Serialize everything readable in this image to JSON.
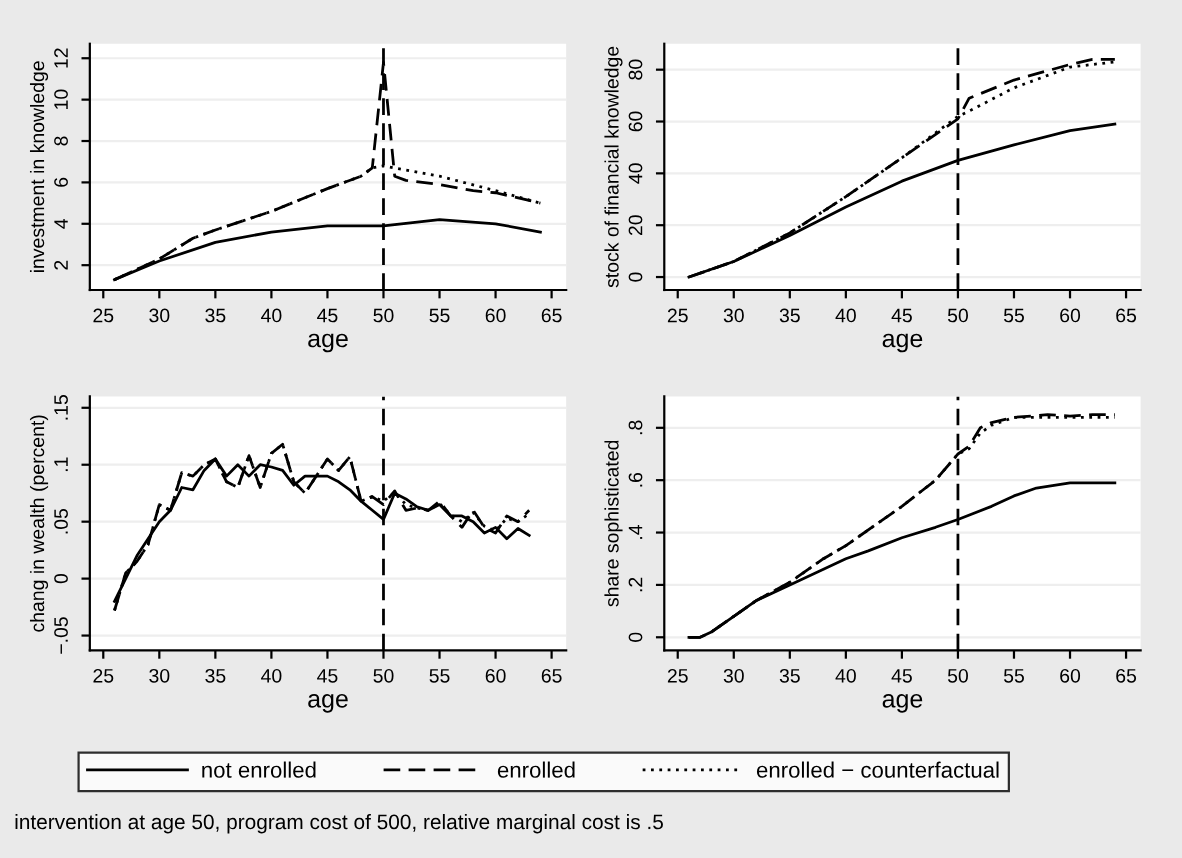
{
  "chart_data": [
    {
      "type": "line",
      "xlabel": "age",
      "ylabel": "investment in knowledge",
      "xlim": [
        23.8,
        66.3
      ],
      "xticks": [
        25,
        30,
        35,
        40,
        45,
        50,
        55,
        60,
        65
      ],
      "ylim": [
        0.8,
        12.7
      ],
      "yticks": [
        2,
        4,
        6,
        8,
        10,
        12
      ],
      "grid": "y",
      "legend": "bottom",
      "ref_lines": [
        {
          "axis": "x",
          "value": 50,
          "line_style": "dashed",
          "color": "#000000"
        }
      ],
      "series": [
        {
          "name": "not enrolled",
          "color": "#000000",
          "line_style": "solid",
          "x": [
            26,
            30,
            35,
            40,
            45,
            50,
            55,
            60,
            64
          ],
          "values": [
            1.3,
            2.2,
            3.1,
            3.6,
            3.9,
            3.9,
            4.2,
            4.0,
            3.6
          ]
        },
        {
          "name": "enrolled",
          "color": "#000000",
          "line_style": "dashed",
          "x": [
            26,
            30,
            33,
            35,
            40,
            45,
            48,
            49,
            50,
            51,
            52,
            55,
            58,
            60,
            64
          ],
          "values": [
            1.3,
            2.3,
            3.3,
            3.7,
            4.6,
            5.7,
            6.3,
            6.7,
            11.8,
            6.3,
            6.1,
            5.9,
            5.6,
            5.5,
            5.0
          ]
        },
        {
          "name": "enrolled − counterfactual",
          "color": "#000000",
          "line_style": "dotted",
          "x": [
            26,
            30,
            33,
            35,
            40,
            45,
            48,
            49,
            50,
            55,
            60,
            64
          ],
          "values": [
            1.3,
            2.3,
            3.3,
            3.7,
            4.6,
            5.7,
            6.3,
            6.7,
            6.8,
            6.3,
            5.6,
            5.0
          ]
        }
      ]
    },
    {
      "type": "line",
      "xlabel": "age",
      "ylabel": "stock of financial knowledge",
      "xlim": [
        23.8,
        66.3
      ],
      "xticks": [
        25,
        30,
        35,
        40,
        45,
        50,
        55,
        60,
        65
      ],
      "ylim": [
        -5,
        90
      ],
      "yticks": [
        0,
        20,
        40,
        60,
        80
      ],
      "grid": "y",
      "ref_lines": [
        {
          "axis": "x",
          "value": 50,
          "line_style": "dashed",
          "color": "#000000"
        }
      ],
      "series": [
        {
          "color": "#000000",
          "line_style": "solid",
          "x": [
            26,
            30,
            35,
            40,
            45,
            50,
            55,
            60,
            64
          ],
          "values": [
            0,
            6,
            16,
            27,
            37,
            45,
            51,
            56.5,
            59
          ]
        },
        {
          "color": "#000000",
          "line_style": "dashed",
          "x": [
            26,
            30,
            35,
            40,
            45,
            50,
            51,
            55,
            60,
            62,
            64
          ],
          "values": [
            0,
            6,
            17,
            31,
            46,
            61,
            69,
            76,
            82,
            84,
            84
          ]
        },
        {
          "color": "#000000",
          "line_style": "dotted",
          "x": [
            27,
            30,
            35,
            40,
            45,
            50,
            51,
            55,
            60,
            64
          ],
          "values": [
            1.5,
            6,
            17,
            31,
            46,
            62,
            64,
            73,
            81,
            83
          ]
        }
      ]
    },
    {
      "type": "line",
      "xlabel": "age",
      "ylabel": "chang in wealth (percent)",
      "xlim": [
        23.8,
        66.3
      ],
      "xticks": [
        25,
        30,
        35,
        40,
        45,
        50,
        55,
        60,
        65
      ],
      "ylim": [
        -0.063,
        0.16
      ],
      "yticks": [
        {
          "value": -0.05,
          "label": "−.05"
        },
        {
          "value": 0,
          "label": "0"
        },
        {
          "value": 0.05,
          "label": ".05"
        },
        {
          "value": 0.1,
          "label": ".1"
        },
        {
          "value": 0.15,
          "label": ".15"
        }
      ],
      "grid": "y",
      "ref_lines": [
        {
          "axis": "x",
          "value": 50,
          "line_style": "dashed",
          "color": "#000000"
        }
      ],
      "series": [
        {
          "color": "#000000",
          "line_style": "solid",
          "x": [
            26,
            27,
            28,
            29,
            30,
            31,
            32,
            33,
            34,
            35,
            36,
            37,
            38,
            39,
            40,
            41,
            42,
            43,
            44,
            45,
            46,
            47,
            48,
            49,
            50,
            51,
            52,
            53,
            54,
            55,
            56,
            57,
            58,
            59,
            60,
            61,
            62,
            63
          ],
          "values": [
            -0.02,
            0.0,
            0.02,
            0.035,
            0.05,
            0.06,
            0.08,
            0.078,
            0.095,
            0.105,
            0.09,
            0.1,
            0.09,
            0.1,
            0.098,
            0.095,
            0.082,
            0.09,
            0.09,
            0.09,
            0.085,
            0.078,
            0.068,
            0.06,
            0.052,
            0.075,
            0.07,
            0.063,
            0.06,
            0.065,
            0.055,
            0.055,
            0.05,
            0.04,
            0.045,
            0.035,
            0.044,
            0.038
          ]
        },
        {
          "color": "#000000",
          "line_style": "dashed",
          "x": [
            26,
            27,
            28,
            29,
            30,
            31,
            32,
            33,
            34,
            35,
            36,
            37,
            38,
            39,
            40,
            41,
            42,
            43,
            44,
            45,
            46,
            47,
            48,
            49,
            50,
            51,
            52,
            53,
            54,
            55,
            56,
            57,
            58,
            59,
            60,
            61,
            62,
            63
          ],
          "values": [
            -0.028,
            0.005,
            0.015,
            0.03,
            0.065,
            0.06,
            0.093,
            0.09,
            0.1,
            0.105,
            0.085,
            0.08,
            0.108,
            0.08,
            0.11,
            0.118,
            0.085,
            0.075,
            0.09,
            0.105,
            0.095,
            0.107,
            0.068,
            0.072,
            0.065,
            0.077,
            0.06,
            0.062,
            0.06,
            0.068,
            0.055,
            0.045,
            0.06,
            0.045,
            0.04,
            0.055,
            0.05,
            0.06
          ]
        },
        {
          "color": "#000000",
          "line_style": "dotted",
          "x": [
            26,
            27,
            28,
            29,
            30,
            31,
            32,
            33,
            34,
            35,
            36,
            37,
            38,
            39,
            40,
            41,
            42,
            43,
            44,
            45,
            46,
            47,
            48,
            49,
            50,
            51,
            52,
            53,
            54,
            55,
            56,
            57,
            58,
            59,
            60,
            61,
            62,
            63
          ],
          "values": [
            -0.028,
            0.005,
            0.015,
            0.03,
            0.065,
            0.06,
            0.093,
            0.09,
            0.1,
            0.105,
            0.085,
            0.08,
            0.108,
            0.08,
            0.11,
            0.118,
            0.085,
            0.075,
            0.09,
            0.105,
            0.095,
            0.107,
            0.068,
            0.072,
            0.068,
            0.076,
            0.065,
            0.062,
            0.06,
            0.066,
            0.056,
            0.05,
            0.058,
            0.046,
            0.042,
            0.053,
            0.05,
            0.057
          ]
        }
      ]
    },
    {
      "type": "line",
      "xlabel": "age",
      "ylabel": "share sophisticated",
      "xlim": [
        23.8,
        66.3
      ],
      "xticks": [
        25,
        30,
        35,
        40,
        45,
        50,
        55,
        60,
        65
      ],
      "ylim": [
        -0.05,
        0.92
      ],
      "yticks": [
        0,
        {
          "value": 0.2,
          "label": ".2"
        },
        {
          "value": 0.4,
          "label": ".4"
        },
        {
          "value": 0.6,
          "label": ".6"
        },
        {
          "value": 0.8,
          "label": ".8"
        }
      ],
      "grid": "y",
      "ref_lines": [
        {
          "axis": "x",
          "value": 50,
          "line_style": "dashed",
          "color": "#000000"
        }
      ],
      "annotations": [
        "intervention at age 50, program cost of 500, relative marginal cost is .5"
      ],
      "series": [
        {
          "color": "#000000",
          "line_style": "solid",
          "x": [
            26,
            27,
            28,
            30,
            32,
            35,
            38,
            40,
            42,
            45,
            48,
            50,
            53,
            55,
            57,
            60,
            64
          ],
          "values": [
            0,
            0,
            0.02,
            0.08,
            0.14,
            0.2,
            0.26,
            0.3,
            0.33,
            0.38,
            0.42,
            0.45,
            0.5,
            0.54,
            0.57,
            0.59,
            0.59
          ]
        },
        {
          "color": "#000000",
          "line_style": "dashed",
          "x": [
            26,
            27,
            28,
            30,
            32,
            35,
            38,
            40,
            43,
            45,
            48,
            50,
            51,
            52,
            53,
            55,
            58,
            60,
            62,
            64
          ],
          "values": [
            0,
            0,
            0.02,
            0.08,
            0.14,
            0.21,
            0.3,
            0.35,
            0.44,
            0.5,
            0.6,
            0.7,
            0.73,
            0.8,
            0.82,
            0.84,
            0.85,
            0.845,
            0.85,
            0.85
          ]
        },
        {
          "color": "#000000",
          "line_style": "dotted",
          "x": [
            28,
            30,
            32,
            35,
            38,
            40,
            43,
            45,
            48,
            50,
            51,
            52,
            53,
            55,
            60,
            64
          ],
          "values": [
            0.02,
            0.08,
            0.14,
            0.21,
            0.3,
            0.35,
            0.44,
            0.5,
            0.6,
            0.7,
            0.72,
            0.78,
            0.81,
            0.84,
            0.84,
            0.84
          ]
        }
      ]
    }
  ]
}
